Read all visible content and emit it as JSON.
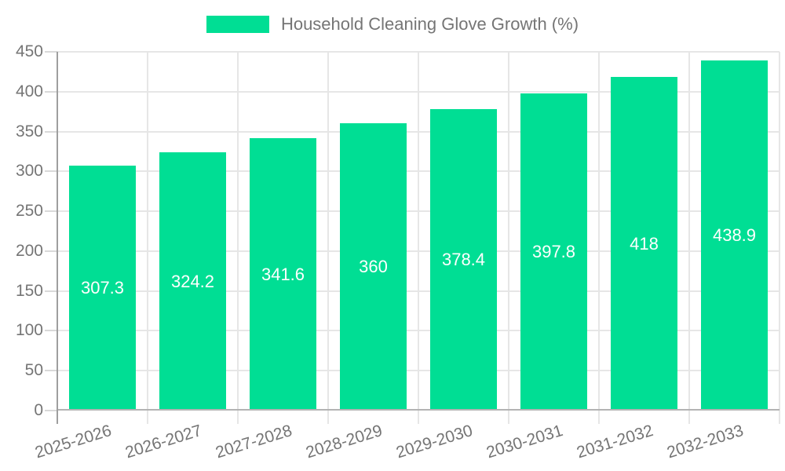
{
  "legend": {
    "label": "Household Cleaning Glove Growth (%)"
  },
  "chart_data": {
    "type": "bar",
    "title": "",
    "xlabel": "",
    "ylabel": "",
    "categories": [
      "2025-2026",
      "2026-2027",
      "2027-2028",
      "2028-2029",
      "2029-2030",
      "2030-2031",
      "2031-2032",
      "2032-2033"
    ],
    "values": [
      307.3,
      324.2,
      341.6,
      360,
      378.4,
      397.8,
      418,
      438.9
    ],
    "bar_labels": [
      "307.3",
      "324.2",
      "341.6",
      "360",
      "378.4",
      "397.8",
      "418",
      "438.9"
    ],
    "series_name": "Household Cleaning Glove Growth (%)",
    "ylim": [
      0,
      450
    ],
    "y_ticks": [
      0,
      50,
      100,
      150,
      200,
      250,
      300,
      350,
      400,
      450
    ],
    "grid": true,
    "legend_position": "top",
    "colors": {
      "bar": "#00de94",
      "bar_label": "#ffffff",
      "grid_line": "#e6e6e6",
      "axis_line": "#9e9e9e",
      "bottom_axis_line": "#b3b3b3",
      "tick_label": "#757575",
      "legend_text": "#757575",
      "background": "#ffffff"
    }
  }
}
